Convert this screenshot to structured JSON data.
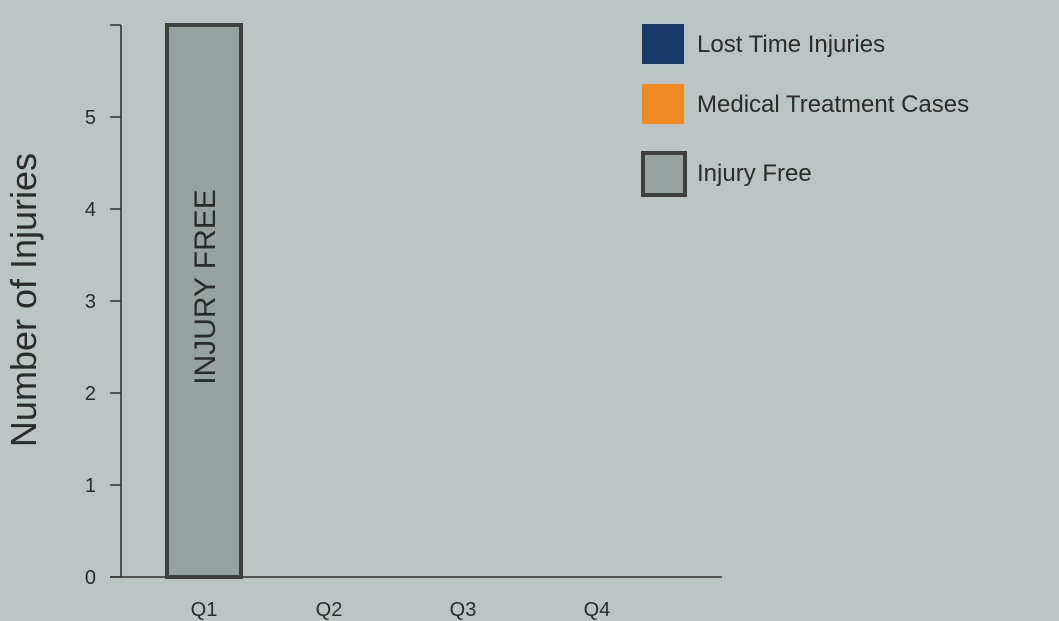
{
  "chart_data": {
    "type": "bar",
    "categories": [
      "Q1",
      "Q2",
      "Q3",
      "Q4"
    ],
    "series": [
      {
        "name": "Lost Time Injuries",
        "color": "#173a6b",
        "values": [
          0,
          0,
          0,
          0
        ]
      },
      {
        "name": "Medical Treatment Cases",
        "color": "#f08a24",
        "values": [
          0,
          0,
          0,
          0
        ]
      },
      {
        "name": "Injury Free",
        "color": "#98a2a1",
        "border_color": "#3f3f3f",
        "values": [
          6,
          0,
          0,
          0
        ]
      }
    ],
    "bar_annotation": "INJURY FREE",
    "ylabel": "Number of Injuries",
    "xlabel": "",
    "yticks": [
      0,
      1,
      2,
      3,
      4,
      5
    ],
    "ylim": [
      0,
      6
    ],
    "grid": false,
    "legend_position": "top-right"
  }
}
